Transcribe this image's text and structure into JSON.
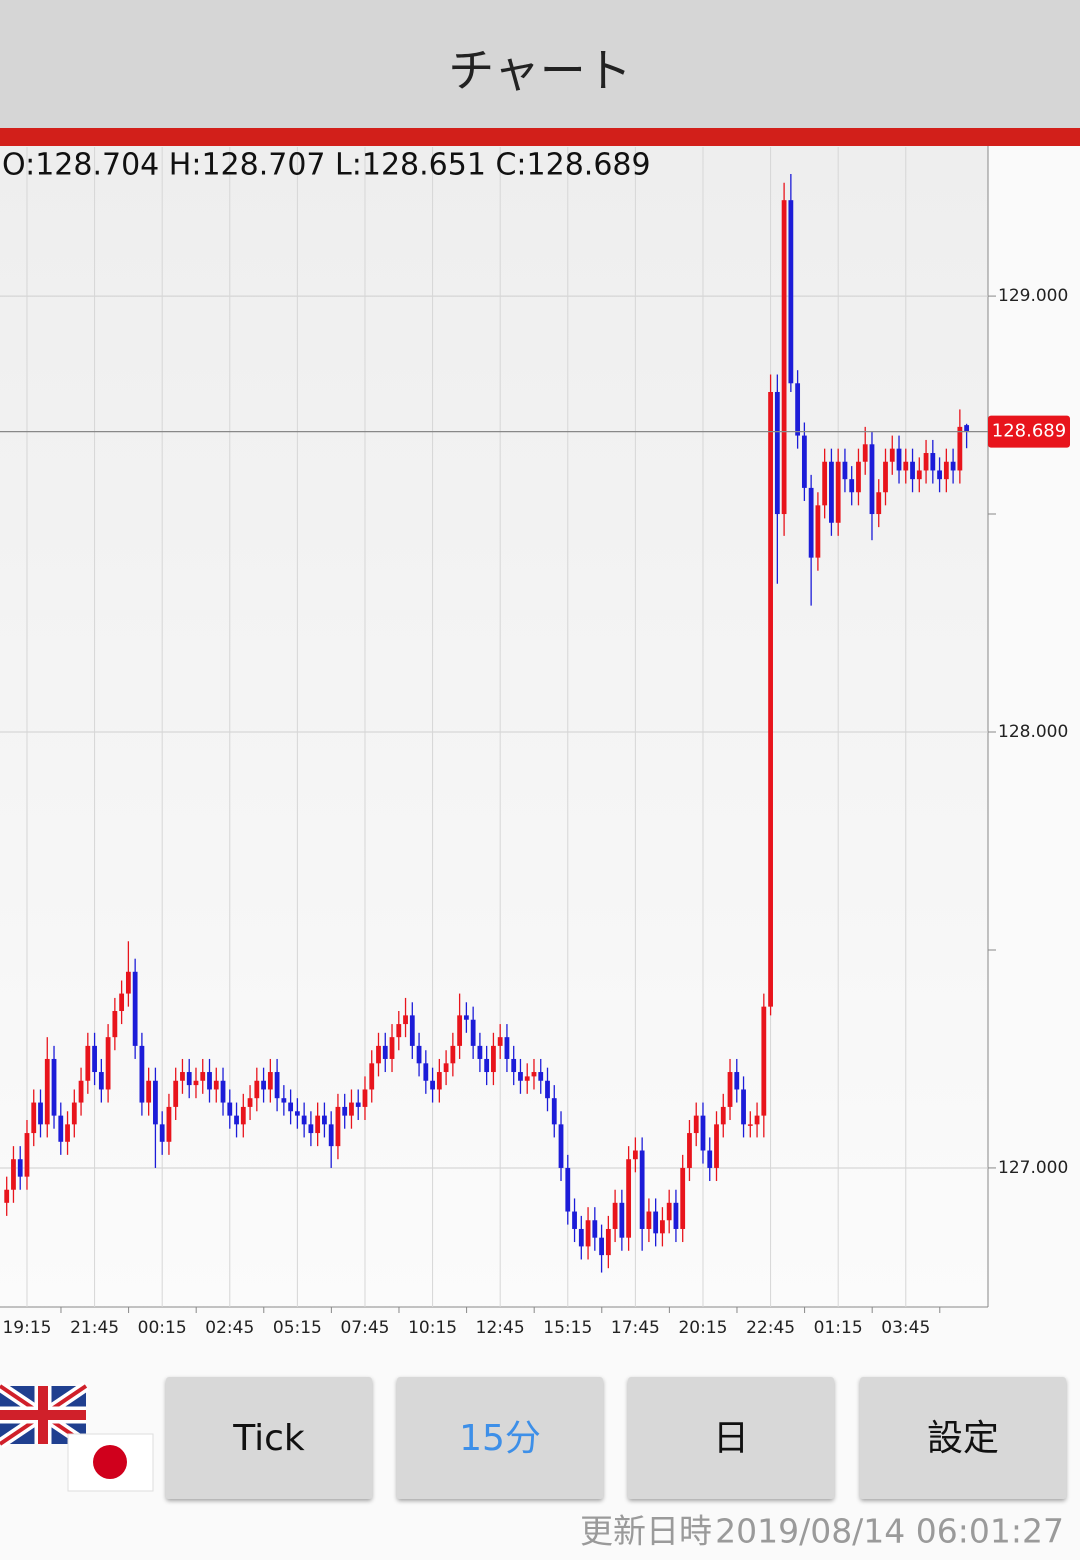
{
  "header": {
    "title": "チャート"
  },
  "ohlc": "O:128.704 H:128.707 L:128.651 C:128.689",
  "chart_data": {
    "type": "candlestick",
    "categories": [
      null,
      null,
      null,
      "19:15",
      null,
      null,
      null,
      null,
      null,
      null,
      null,
      null,
      null,
      "21:45",
      null,
      null,
      null,
      null,
      null,
      null,
      null,
      null,
      null,
      "00:15",
      null,
      null,
      null,
      null,
      null,
      null,
      null,
      null,
      null,
      "02:45",
      null,
      null,
      null,
      null,
      null,
      null,
      null,
      null,
      null,
      "05:15",
      null,
      null,
      null,
      null,
      null,
      null,
      null,
      null,
      null,
      "07:45",
      null,
      null,
      null,
      null,
      null,
      null,
      null,
      null,
      null,
      "10:15",
      null,
      null,
      null,
      null,
      null,
      null,
      null,
      null,
      null,
      "12:45",
      null,
      null,
      null,
      null,
      null,
      null,
      null,
      null,
      null,
      "15:15",
      null,
      null,
      null,
      null,
      null,
      null,
      null,
      null,
      null,
      "17:45",
      null,
      null,
      null,
      null,
      null,
      null,
      null,
      null,
      null,
      "20:15",
      null,
      null,
      null,
      null,
      null,
      null,
      null,
      null,
      null,
      "22:45",
      null,
      null,
      null,
      null,
      null,
      null,
      null,
      null,
      null,
      "01:15",
      null,
      null,
      null,
      null,
      null,
      null,
      null,
      null,
      null,
      "03:45",
      null,
      null,
      null,
      null,
      null,
      null,
      null,
      null,
      null
    ],
    "series": [
      {
        "up_color": "#e8141c",
        "down_color": "#1c1cd8",
        "open": [
          126.92,
          126.95,
          127.02,
          126.98,
          127.08,
          127.15,
          127.1,
          127.25,
          127.12,
          127.06,
          127.1,
          127.15,
          127.2,
          127.28,
          127.22,
          127.18,
          127.3,
          127.36,
          127.4,
          127.45,
          127.28,
          127.15,
          127.2,
          127.1,
          127.06,
          127.14,
          127.2,
          127.22,
          127.19,
          127.2,
          127.22,
          127.18,
          127.2,
          127.15,
          127.12,
          127.1,
          127.14,
          127.16,
          127.2,
          127.18,
          127.22,
          127.16,
          127.15,
          127.13,
          127.12,
          127.1,
          127.08,
          127.12,
          127.1,
          127.05,
          127.14,
          127.12,
          127.15,
          127.14,
          127.18,
          127.24,
          127.28,
          127.25,
          127.3,
          127.33,
          127.35,
          127.28,
          127.24,
          127.2,
          127.18,
          127.22,
          127.24,
          127.28,
          127.35,
          127.34,
          127.28,
          127.25,
          127.22,
          127.28,
          127.3,
          127.25,
          127.22,
          127.2,
          127.21,
          127.22,
          127.2,
          127.16,
          127.1,
          127.0,
          126.9,
          126.86,
          126.82,
          126.88,
          126.84,
          126.8,
          126.86,
          126.92,
          126.84,
          127.02,
          127.04,
          126.86,
          126.9,
          126.85,
          126.88,
          126.92,
          126.86,
          127.0,
          127.08,
          127.12,
          127.04,
          127.0,
          127.1,
          127.14,
          127.22,
          127.18,
          127.1,
          127.1,
          127.12,
          127.37,
          128.78,
          128.5,
          129.22,
          128.8,
          128.68,
          128.56,
          128.4,
          128.52,
          128.62,
          128.48,
          128.62,
          128.58,
          128.55,
          128.62,
          128.66,
          128.5,
          128.55,
          128.62,
          128.65,
          128.6,
          128.62,
          128.58,
          128.6,
          128.64,
          128.6,
          128.58,
          128.62,
          128.6,
          128.704
        ],
        "high": [
          126.98,
          127.05,
          127.05,
          127.11,
          127.18,
          127.18,
          127.3,
          127.28,
          127.15,
          127.13,
          127.18,
          127.23,
          127.31,
          127.31,
          127.25,
          127.33,
          127.39,
          127.43,
          127.52,
          127.48,
          127.31,
          127.23,
          127.23,
          127.13,
          127.17,
          127.23,
          127.25,
          127.25,
          127.23,
          127.25,
          127.25,
          127.23,
          127.23,
          127.18,
          127.15,
          127.17,
          127.19,
          127.23,
          127.23,
          127.25,
          127.25,
          127.19,
          127.18,
          127.16,
          127.15,
          127.13,
          127.15,
          127.15,
          127.13,
          127.17,
          127.17,
          127.18,
          127.18,
          127.21,
          127.27,
          127.31,
          127.31,
          127.33,
          127.36,
          127.39,
          127.38,
          127.31,
          127.27,
          127.23,
          127.25,
          127.27,
          127.31,
          127.4,
          127.38,
          127.37,
          127.31,
          127.28,
          127.31,
          127.33,
          127.33,
          127.28,
          127.25,
          127.24,
          127.25,
          127.25,
          127.23,
          127.19,
          127.13,
          127.03,
          126.93,
          126.89,
          126.91,
          126.91,
          126.87,
          126.89,
          126.95,
          126.95,
          127.05,
          127.07,
          127.07,
          126.93,
          126.93,
          126.91,
          126.95,
          126.95,
          127.03,
          127.11,
          127.15,
          127.15,
          127.07,
          127.13,
          127.17,
          127.25,
          127.25,
          127.21,
          127.13,
          127.15,
          127.4,
          128.82,
          128.82,
          129.26,
          129.28,
          128.83,
          128.71,
          128.59,
          128.55,
          128.65,
          128.65,
          128.65,
          128.65,
          128.61,
          128.65,
          128.7,
          128.69,
          128.58,
          128.65,
          128.68,
          128.68,
          128.65,
          128.65,
          128.63,
          128.67,
          128.67,
          128.63,
          128.65,
          128.65,
          128.74,
          128.707
        ],
        "low": [
          126.89,
          126.92,
          126.95,
          126.95,
          127.05,
          127.07,
          127.07,
          127.09,
          127.03,
          127.03,
          127.07,
          127.12,
          127.17,
          127.19,
          127.15,
          127.15,
          127.27,
          127.33,
          127.37,
          127.25,
          127.12,
          127.12,
          127.0,
          127.03,
          127.03,
          127.11,
          127.17,
          127.16,
          127.16,
          127.17,
          127.15,
          127.15,
          127.12,
          127.09,
          127.07,
          127.07,
          127.11,
          127.13,
          127.15,
          127.15,
          127.13,
          127.12,
          127.1,
          127.09,
          127.07,
          127.05,
          127.05,
          127.07,
          127.0,
          127.02,
          127.09,
          127.09,
          127.11,
          127.11,
          127.15,
          127.21,
          127.22,
          127.22,
          127.27,
          127.3,
          127.25,
          127.21,
          127.17,
          127.15,
          127.15,
          127.19,
          127.21,
          127.25,
          127.31,
          127.25,
          127.22,
          127.19,
          127.19,
          127.25,
          127.22,
          127.19,
          127.17,
          127.17,
          127.18,
          127.17,
          127.13,
          127.07,
          126.97,
          126.87,
          126.83,
          126.79,
          126.79,
          126.81,
          126.76,
          126.77,
          126.83,
          126.81,
          126.81,
          126.99,
          126.81,
          126.83,
          126.82,
          126.82,
          126.85,
          126.83,
          126.83,
          126.97,
          127.05,
          127.01,
          126.97,
          126.97,
          127.07,
          127.11,
          127.15,
          127.07,
          127.07,
          127.07,
          127.07,
          127.35,
          128.34,
          128.45,
          128.78,
          128.65,
          128.53,
          128.29,
          128.37,
          128.49,
          128.45,
          128.45,
          128.55,
          128.52,
          128.52,
          128.59,
          128.44,
          128.47,
          128.52,
          128.59,
          128.57,
          128.57,
          128.55,
          128.55,
          128.57,
          128.57,
          128.55,
          128.55,
          128.57,
          128.57,
          128.651
        ],
        "close": [
          126.95,
          127.02,
          126.98,
          127.08,
          127.15,
          127.1,
          127.25,
          127.12,
          127.06,
          127.1,
          127.15,
          127.2,
          127.28,
          127.22,
          127.18,
          127.3,
          127.36,
          127.4,
          127.45,
          127.28,
          127.15,
          127.2,
          127.1,
          127.06,
          127.14,
          127.2,
          127.22,
          127.19,
          127.2,
          127.22,
          127.18,
          127.2,
          127.15,
          127.12,
          127.1,
          127.14,
          127.16,
          127.2,
          127.18,
          127.22,
          127.16,
          127.15,
          127.13,
          127.12,
          127.1,
          127.08,
          127.12,
          127.1,
          127.05,
          127.14,
          127.12,
          127.15,
          127.14,
          127.18,
          127.24,
          127.28,
          127.25,
          127.3,
          127.33,
          127.35,
          127.28,
          127.24,
          127.2,
          127.18,
          127.22,
          127.24,
          127.28,
          127.35,
          127.34,
          127.28,
          127.25,
          127.22,
          127.28,
          127.3,
          127.25,
          127.22,
          127.2,
          127.21,
          127.22,
          127.2,
          127.16,
          127.1,
          127.0,
          126.9,
          126.86,
          126.82,
          126.88,
          126.84,
          126.8,
          126.86,
          126.92,
          126.84,
          127.02,
          127.04,
          126.86,
          126.9,
          126.85,
          126.88,
          126.92,
          126.86,
          127.0,
          127.08,
          127.12,
          127.04,
          127.0,
          127.1,
          127.14,
          127.22,
          127.18,
          127.1,
          127.1,
          127.12,
          127.37,
          128.78,
          128.5,
          129.22,
          128.8,
          128.68,
          128.56,
          128.4,
          128.52,
          128.62,
          128.48,
          128.62,
          128.58,
          128.55,
          128.62,
          128.66,
          128.5,
          128.55,
          128.62,
          128.65,
          128.6,
          128.62,
          128.58,
          128.6,
          128.64,
          128.6,
          128.58,
          128.62,
          128.6,
          128.7,
          128.689
        ]
      }
    ],
    "ylim": [
      126.681,
      129.342
    ],
    "yticks": [
      {
        "value": 129,
        "label": "129.000"
      },
      {
        "value": 128,
        "label": "128.000"
      },
      {
        "value": 127,
        "label": "127.000"
      }
    ],
    "grid": true
  },
  "buttons": [
    "Tick",
    "15分",
    "日",
    "設定"
  ],
  "footer": {
    "label": "更新日時",
    "timestamp": "2019/08/14 06:01:27"
  }
}
